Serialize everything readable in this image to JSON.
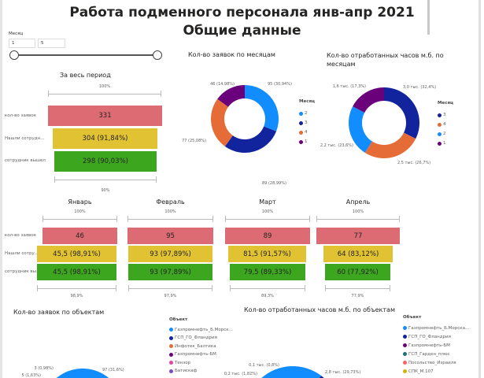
{
  "header": {
    "title_line1": "Работа подменного персонала янв-апр 2021",
    "title_line2": "Общие данные"
  },
  "slicer": {
    "label": "Месяц",
    "from": "1",
    "to": "5"
  },
  "funnel_total": {
    "title": "За весь период",
    "top_pct": "100%",
    "bottom_pct": "90%",
    "rows": [
      {
        "label": "кол-во заявок",
        "value": "331",
        "color": "#dd6b73"
      },
      {
        "label": "Нашли сотрудн...",
        "value": "304 (91,84%)",
        "color": "#e0c233"
      },
      {
        "label": "сотрудник вышел",
        "value": "298 (90,03%)",
        "color": "#3ca61f"
      }
    ]
  },
  "row_labels": [
    "кол-во заявок",
    "Нашли сотру...",
    "сотрудник вы..."
  ],
  "months": [
    {
      "title": "Январь",
      "top_pct": "100%",
      "bottom_pct": "98,9%",
      "values": [
        "46",
        "45,5 (98,91%)",
        "45,5 (98,91%)"
      ]
    },
    {
      "title": "Февраль",
      "top_pct": "100%",
      "bottom_pct": "97,9%",
      "values": [
        "95",
        "93 (97,89%)",
        "93 (97,89%)"
      ]
    },
    {
      "title": "Март",
      "top_pct": "100%",
      "bottom_pct": "89,3%",
      "values": [
        "89",
        "81,5 (91,57%)",
        "79,5 (89,33%)"
      ]
    },
    {
      "title": "Апрель",
      "top_pct": "100%",
      "bottom_pct": "77,9%",
      "values": [
        "77",
        "64 (83,12%)",
        "60 (77,92%)"
      ]
    }
  ],
  "chart_data": [
    {
      "type": "pie",
      "title": "Кол-во заявок по месяцам",
      "legend_title": "Месяц",
      "legend_placement": "right",
      "categories": [
        "2",
        "3",
        "4",
        "1"
      ],
      "values": [
        95,
        89,
        77,
        46
      ],
      "labels": [
        "95 (30,94%)",
        "89 (28,99%)",
        "77 (25,08%)",
        "46 (14,98%)"
      ],
      "colors": [
        "#118DFF",
        "#12239E",
        "#E66C37",
        "#6B007B"
      ]
    },
    {
      "type": "pie",
      "title": "Кол-во отработанных часов м.б. по месяцам",
      "legend_title": "Месяц",
      "legend_placement": "right",
      "categories": [
        "3",
        "4",
        "2",
        "1"
      ],
      "values": [
        32.4,
        26.7,
        23.6,
        17.3
      ],
      "labels": [
        "3,0 тыс. (32,4%)",
        "2,5 тыс. (26,7%)",
        "2,2 тыс. (23,6%)",
        "1,6 тыс. (17,3%)"
      ],
      "colors": [
        "#12239E",
        "#E66C37",
        "#118DFF",
        "#6B007B"
      ]
    },
    {
      "type": "pie",
      "title": "Кол-во заявок по объектам",
      "legend_title": "Объект",
      "legend_placement": "right",
      "categories": [
        "Газпромнефть_Б.Морск...",
        "ГСП_ГО_Фландрия",
        "Инфотек_Балтика",
        "Газпромнефть-БМ",
        "Тензор",
        "Батискаф"
      ],
      "visible_labels": [
        "97 (31,6%)",
        "3 (0,98%)",
        "5 (1,63%)"
      ],
      "colors": [
        "#118DFF",
        "#12239E",
        "#E66C37",
        "#6B007B",
        "#E044A7",
        "#744EC2"
      ]
    },
    {
      "type": "pie",
      "title": "Кол-во отработанных часов м.б. по объектам",
      "legend_title": "Объект",
      "legend_placement": "right",
      "categories": [
        "Газпромнефть_Б.Морска...",
        "ГСП_ГО_Фландрия",
        "Газпромнефть-БМ",
        "ГСП_Гарден_плюс",
        "Посольство_Израиля",
        "СПК_М.107"
      ],
      "visible_labels": [
        "2,8 тыс. (29,73%)",
        "0,1 тыс. (0,8%)",
        "0,2 тыс. (1,82%)"
      ],
      "colors": [
        "#118DFF",
        "#12239E",
        "#6B007B",
        "#197278",
        "#FD625E",
        "#D9B300"
      ]
    }
  ]
}
